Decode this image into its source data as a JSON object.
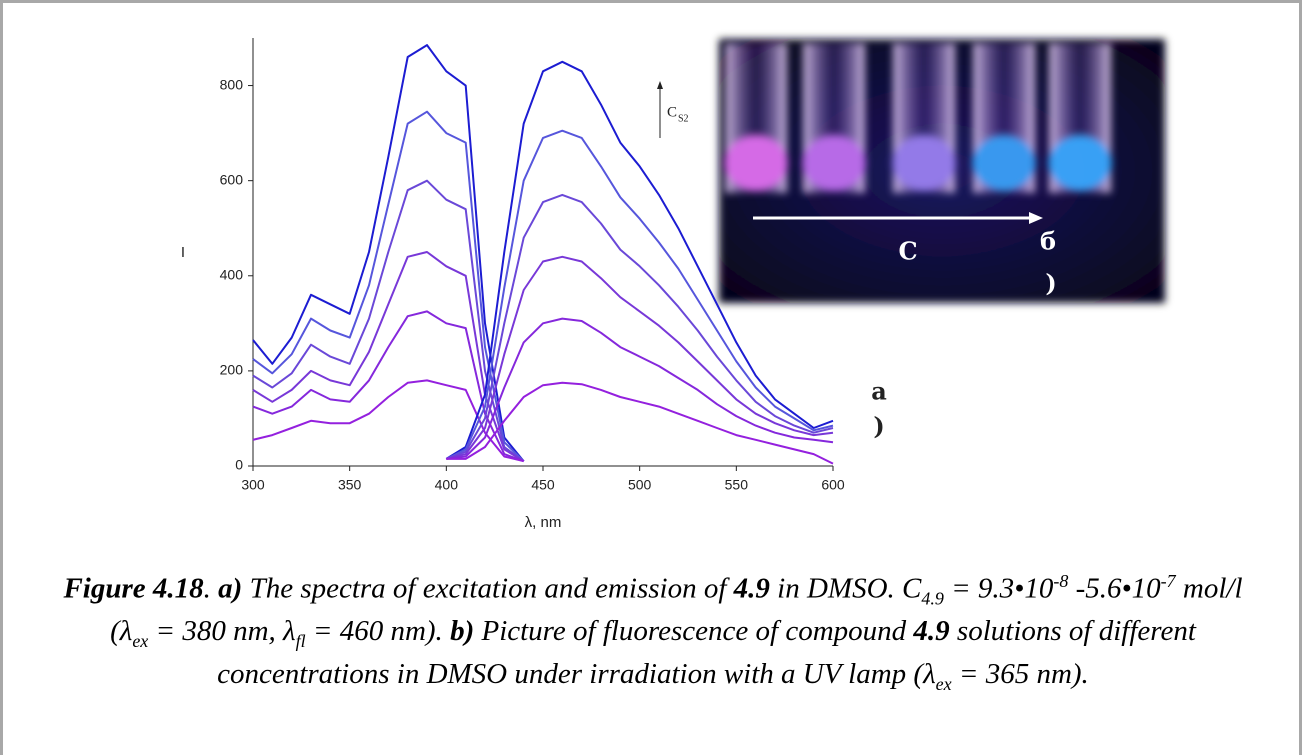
{
  "chart_data": {
    "type": "line",
    "x_label": "λ, nm",
    "y_label": "I",
    "x": [
      300,
      310,
      320,
      330,
      340,
      350,
      360,
      370,
      380,
      390,
      400,
      410,
      420,
      430,
      440,
      450,
      460,
      470,
      480,
      490,
      500,
      510,
      520,
      530,
      540,
      550,
      560,
      570,
      580,
      590,
      600
    ],
    "series": [
      {
        "color": "#1c1cd2",
        "values": [
          265,
          215,
          270,
          360,
          340,
          320,
          450,
          650,
          860,
          885,
          830,
          800,
          300,
          60,
          10,
          null,
          null,
          null,
          null,
          null,
          null,
          null,
          null,
          null,
          null,
          null,
          null,
          null,
          null,
          null,
          null
        ]
      },
      {
        "color": "#5656dc",
        "values": [
          225,
          195,
          235,
          310,
          285,
          270,
          380,
          550,
          720,
          745,
          700,
          680,
          250,
          50,
          10,
          null,
          null,
          null,
          null,
          null,
          null,
          null,
          null,
          null,
          null,
          null,
          null,
          null,
          null,
          null,
          null
        ]
      },
      {
        "color": "#6a48d8",
        "values": [
          190,
          165,
          195,
          255,
          230,
          215,
          310,
          450,
          580,
          600,
          560,
          540,
          200,
          40,
          10,
          null,
          null,
          null,
          null,
          null,
          null,
          null,
          null,
          null,
          null,
          null,
          null,
          null,
          null,
          null,
          null
        ]
      },
      {
        "color": "#7838d8",
        "values": [
          160,
          135,
          160,
          200,
          180,
          170,
          240,
          340,
          440,
          450,
          420,
          400,
          150,
          35,
          10,
          null,
          null,
          null,
          null,
          null,
          null,
          null,
          null,
          null,
          null,
          null,
          null,
          null,
          null,
          null,
          null
        ]
      },
      {
        "color": "#8528dc",
        "values": [
          125,
          110,
          125,
          160,
          140,
          135,
          180,
          250,
          315,
          325,
          300,
          290,
          110,
          25,
          10,
          null,
          null,
          null,
          null,
          null,
          null,
          null,
          null,
          null,
          null,
          null,
          null,
          null,
          null,
          null,
          null
        ]
      },
      {
        "color": "#9420de",
        "values": [
          55,
          65,
          80,
          95,
          90,
          90,
          110,
          145,
          175,
          180,
          170,
          160,
          70,
          20,
          10,
          null,
          null,
          null,
          null,
          null,
          null,
          null,
          null,
          null,
          null,
          null,
          null,
          null,
          null,
          null,
          null
        ]
      },
      {
        "color": "#1c1cd2",
        "values": [
          null,
          null,
          null,
          null,
          null,
          null,
          null,
          null,
          null,
          null,
          15,
          40,
          150,
          450,
          720,
          830,
          850,
          830,
          760,
          680,
          630,
          570,
          500,
          420,
          340,
          260,
          190,
          140,
          110,
          80,
          95
        ]
      },
      {
        "color": "#5656dc",
        "values": [
          null,
          null,
          null,
          null,
          null,
          null,
          null,
          null,
          null,
          null,
          15,
          35,
          125,
          375,
          600,
          690,
          705,
          690,
          630,
          565,
          520,
          470,
          415,
          350,
          285,
          220,
          165,
          125,
          100,
          75,
          85
        ]
      },
      {
        "color": "#6a48d8",
        "values": [
          null,
          null,
          null,
          null,
          null,
          null,
          null,
          null,
          null,
          null,
          15,
          30,
          100,
          300,
          480,
          555,
          570,
          555,
          510,
          455,
          420,
          380,
          335,
          285,
          230,
          180,
          135,
          105,
          85,
          70,
          80
        ]
      },
      {
        "color": "#7838d8",
        "values": [
          null,
          null,
          null,
          null,
          null,
          null,
          null,
          null,
          null,
          null,
          15,
          25,
          80,
          235,
          370,
          430,
          440,
          430,
          395,
          355,
          325,
          295,
          260,
          220,
          180,
          140,
          110,
          90,
          75,
          65,
          70
        ]
      },
      {
        "color": "#8528dc",
        "values": [
          null,
          null,
          null,
          null,
          null,
          null,
          null,
          null,
          null,
          null,
          15,
          20,
          60,
          165,
          260,
          300,
          310,
          305,
          280,
          250,
          230,
          210,
          185,
          160,
          130,
          105,
          85,
          70,
          60,
          55,
          50
        ]
      },
      {
        "color": "#9420de",
        "values": [
          null,
          null,
          null,
          null,
          null,
          null,
          null,
          null,
          null,
          null,
          15,
          15,
          40,
          95,
          145,
          170,
          175,
          172,
          160,
          145,
          135,
          125,
          110,
          95,
          80,
          65,
          55,
          45,
          35,
          25,
          5
        ]
      }
    ],
    "xlim": [
      300,
      600
    ],
    "xticks": [
      300,
      350,
      400,
      450,
      500,
      550,
      600
    ],
    "ylim": [
      0,
      900
    ],
    "yticks": [
      0,
      200,
      400,
      600,
      800
    ],
    "conc_label": "C",
    "conc_sub": "S2",
    "panel_a": [
      "а",
      ")"
    ]
  },
  "photo": {
    "arrow_label": "C",
    "panel_b": [
      "б",
      ")"
    ]
  },
  "caption": [
    "Figure 4.18",
    ". ",
    "a)",
    " The spectra of excitation and emission of ",
    "4.9",
    " in DMSO. C",
    "4.9",
    " = 9.3•10",
    "-8",
    " -5.6•10",
    "-7",
    " mol/l (λ",
    "ex",
    " = 380 nm, λ",
    "fl",
    " = 460 nm). ",
    "b)",
    " Picture of fluorescence of compound ",
    "4.9",
    " solutions of different concentrations in DMSO under irradiation with a UV lamp (λ",
    "ex",
    " = 365 nm)."
  ]
}
